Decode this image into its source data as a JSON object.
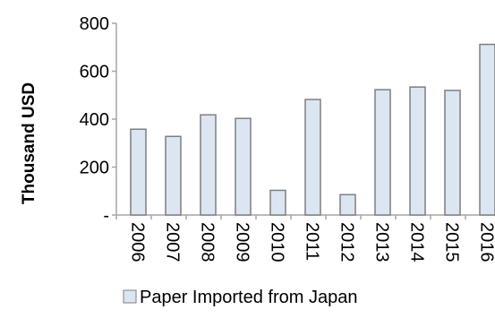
{
  "chart_data": {
    "type": "bar",
    "title": "",
    "xlabel": "",
    "ylabel": "Thousand USD",
    "categories": [
      "2006",
      "2007",
      "2008",
      "2009",
      "2010",
      "2011",
      "2012",
      "2013",
      "2014",
      "2015",
      "2016"
    ],
    "series": [
      {
        "name": "Paper Imported from Japan",
        "values": [
          358,
          328,
          418,
          403,
          103,
          482,
          85,
          523,
          534,
          520,
          712
        ]
      }
    ],
    "ylim": [
      0,
      800
    ],
    "yticks": [
      0,
      200,
      400,
      600,
      800
    ],
    "ytick_labels": [
      "-",
      "200",
      "400",
      "600",
      "800"
    ],
    "grid": false,
    "legend": "bottom",
    "bar_fill": "#dce6f2",
    "bar_stroke": "#7f7f7f",
    "axis_color": "#a6a6a6"
  }
}
